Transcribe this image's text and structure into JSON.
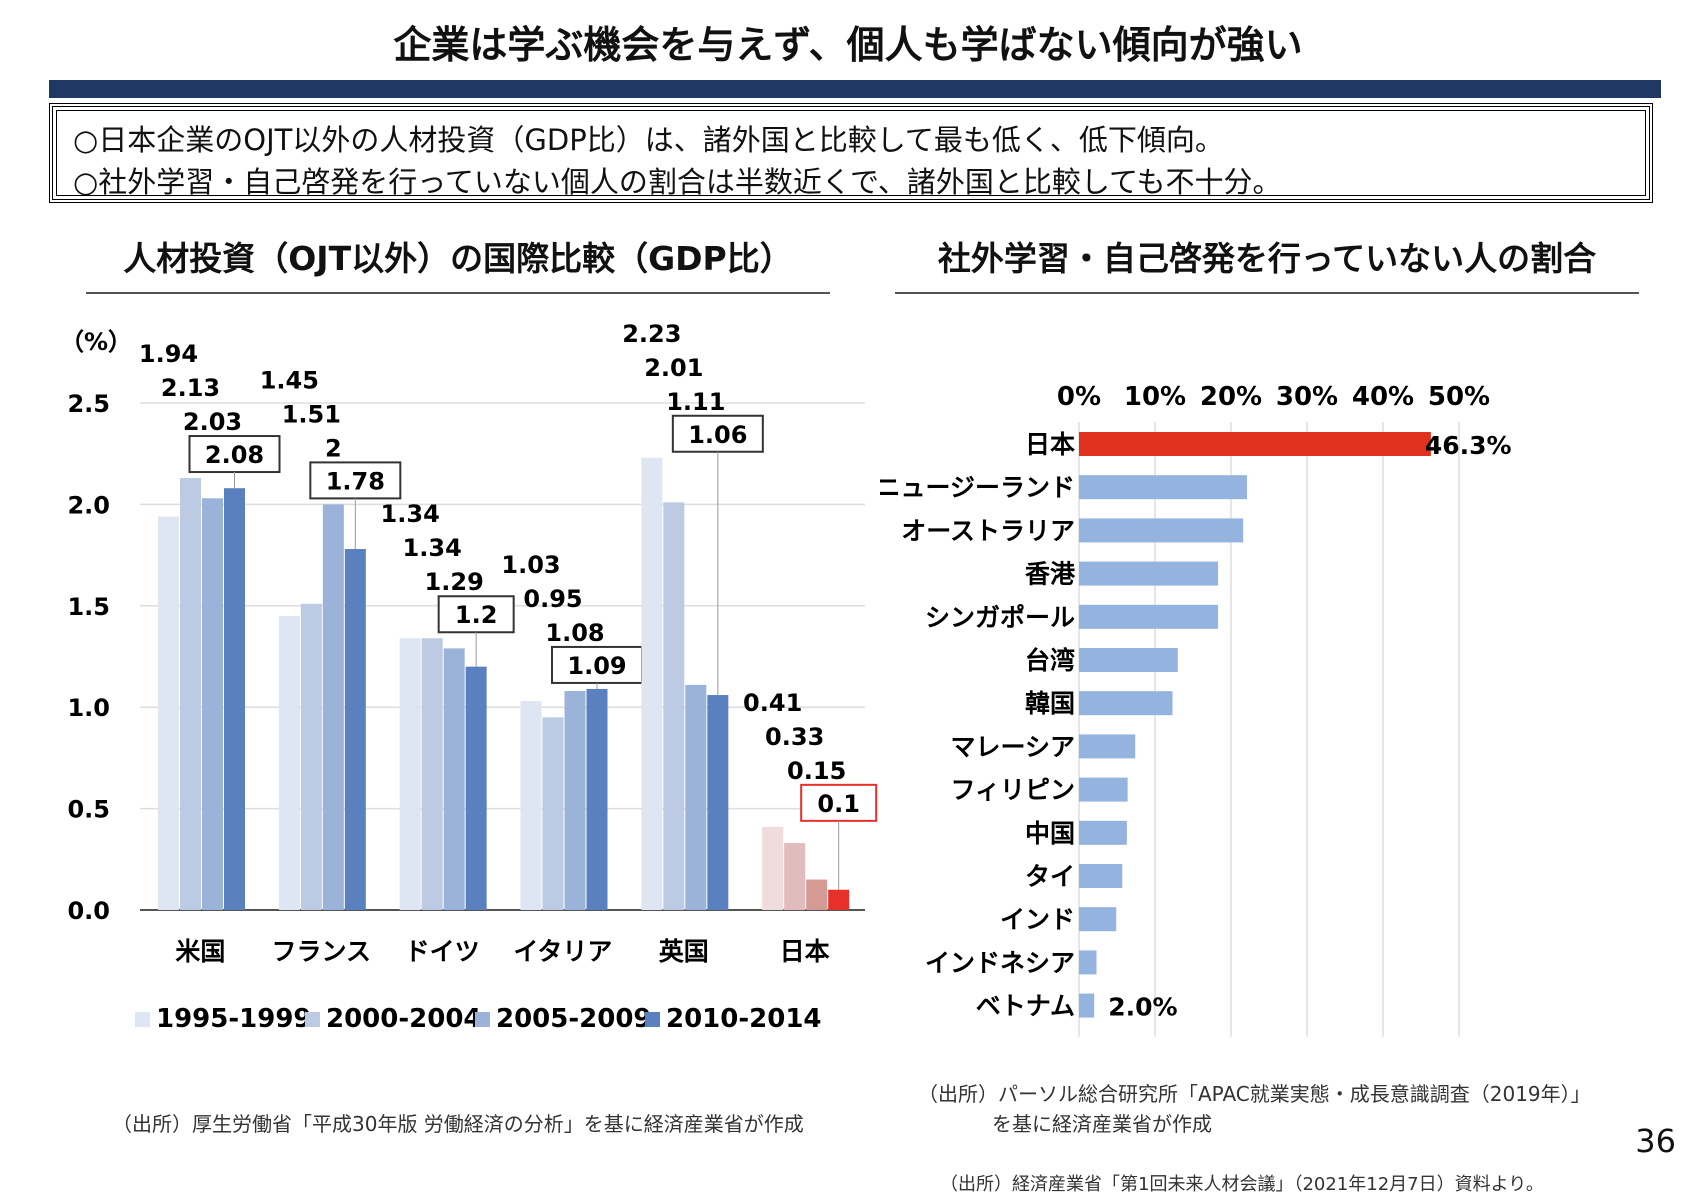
{
  "title": "企業は学ぶ機会を与えず、個人も学ばない傾向が強い",
  "summary": [
    "○日本企業のOJT以外の人材投資（GDP比）は、諸外国と比較して最も低く、低下傾向。",
    "○社外学習・自己啓発を行っていない個人の割合は半数近くで、諸外国と比較しても不十分。"
  ],
  "left_heading": "人材投資（OJT以外）の国際比較（GDP比）",
  "right_heading": "社外学習・自己啓発を行っていない人の割合",
  "left_source": "（出所）厚生労働省「平成30年版 労働経済の分析」を基に経済産業省が作成",
  "right_source": [
    "（出所）パーソル総合研究所「APAC就業実態・成長意識調査（2019年）」",
    "を基に経済産業省が作成"
  ],
  "footer_source": "（出所）経済産業省「第1回未来人材会議」（2021年12月7日）資料より。",
  "page_number": "36",
  "chart_data": [
    {
      "type": "bar",
      "title": "人材投資（OJT以外）の国際比較（GDP比）",
      "ylabel": "（%）",
      "ylim": [
        0,
        2.5
      ],
      "yticks": [
        "0.0",
        "0.5",
        "1.0",
        "1.5",
        "2.0",
        "2.5"
      ],
      "grid": true,
      "legend_position": "bottom",
      "categories": [
        "米国",
        "フランス",
        "ドイツ",
        "イタリア",
        "英国",
        "日本"
      ],
      "series": [
        {
          "name": "1995-1999",
          "values": [
            1.94,
            1.45,
            1.34,
            1.03,
            2.23,
            0.41
          ],
          "color": "#dde6f2"
        },
        {
          "name": "2000-2004",
          "values": [
            2.13,
            1.51,
            1.34,
            0.95,
            2.01,
            0.33
          ],
          "color": "#bccbe3"
        },
        {
          "name": "2005-2009",
          "values": [
            2.03,
            2,
            1.29,
            1.08,
            1.11,
            0.15
          ],
          "color": "#9bb3d8"
        },
        {
          "name": "2010-2014",
          "values": [
            2.08,
            1.78,
            1.2,
            1.09,
            1.06,
            0.1
          ],
          "color": "#5b80c0"
        }
      ],
      "highlight_colors": [
        "#f0dcdc",
        "#e2bcbc",
        "#d49a94",
        "#e8302a"
      ]
    },
    {
      "type": "bar",
      "orientation": "horizontal",
      "title": "社外学習・自己啓発を行っていない人の割合",
      "xlim": [
        0,
        50
      ],
      "xticks": [
        "0%",
        "10%",
        "20%",
        "30%",
        "40%",
        "50%"
      ],
      "grid": true,
      "categories": [
        "日本",
        "ニュージーランド",
        "オーストラリア",
        "香港",
        "シンガポール",
        "台湾",
        "韓国",
        "マレーシア",
        "フィリピン",
        "中国",
        "タイ",
        "インド",
        "インドネシア",
        "ベトナム"
      ],
      "values": [
        46.3,
        22.1,
        21.6,
        18.3,
        18.3,
        13.0,
        12.3,
        7.4,
        6.4,
        6.3,
        5.7,
        4.9,
        2.3,
        2.0
      ],
      "data_labels": {
        "0": "46.3%",
        "13": "2.0%"
      },
      "bar_color": "#95b3df",
      "highlight_color": "#e0301e"
    }
  ]
}
